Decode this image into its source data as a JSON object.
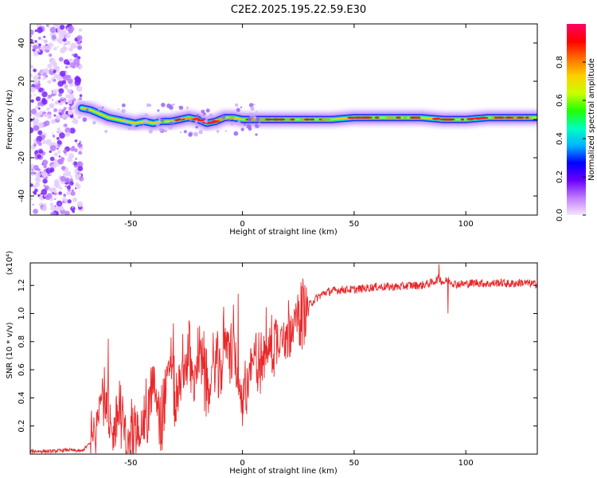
{
  "title": "C2E2.2025.195.22.59.E30",
  "chart_data": [
    {
      "type": "heatmap",
      "title": "C2E2.2025.195.22.59.E30",
      "xlabel": "Height of straight line (km)",
      "ylabel": "Frequency (Hz)",
      "xlim": [
        -95,
        132
      ],
      "ylim": [
        -50,
        50
      ],
      "xticks": [
        -50,
        0,
        50,
        100
      ],
      "xtick_labels": [
        "-50",
        "0",
        "50",
        "100"
      ],
      "yticks": [
        -40,
        -20,
        0,
        20,
        40
      ],
      "ytick_labels": [
        "-40",
        "-20",
        "0",
        "20",
        "40"
      ],
      "colorbar": {
        "label": "Normalized spectral amplitude",
        "range": [
          0,
          1
        ],
        "ticks": [
          0.0,
          0.2,
          0.4,
          0.6,
          0.8
        ],
        "tick_labels": [
          "0.0",
          "0.2",
          "0.4",
          "0.6",
          "0.8"
        ],
        "colors": [
          "#f4e6ff",
          "#c07cff",
          "#6a00ff",
          "#0000ff",
          "#00b4ff",
          "#00ffc0",
          "#20ff00",
          "#c8ff00",
          "#ffd000",
          "#ff7000",
          "#ff0000",
          "#ff0066"
        ]
      },
      "noise_region_x": [
        -95,
        -72
      ],
      "ridge": {
        "x": [
          -72,
          -68,
          -64,
          -60,
          -56,
          -52,
          -48,
          -44,
          -40,
          -36,
          -32,
          -28,
          -24,
          -20,
          -16,
          -12,
          -8,
          -4,
          0,
          10,
          20,
          30,
          40,
          50,
          60,
          70,
          80,
          90,
          100,
          110,
          120,
          132
        ],
        "y": [
          6,
          5,
          3,
          1,
          0,
          -1,
          -2,
          -1,
          -2,
          -1,
          -1,
          0,
          1,
          0,
          -2,
          -1,
          1,
          1,
          0,
          0,
          0,
          0,
          0,
          1,
          1,
          1,
          1,
          0,
          0,
          1,
          1,
          1
        ]
      }
    },
    {
      "type": "line",
      "xlabel": "Height of straight line (km)",
      "ylabel": "SNR (10 * v/v)",
      "multiplier": "(x10⁴)",
      "xlim": [
        -95,
        132
      ],
      "ylim": [
        0,
        1.36
      ],
      "xticks": [
        -50,
        0,
        50,
        100
      ],
      "xtick_labels": [
        "-50",
        "0",
        "50",
        "100"
      ],
      "yticks": [
        0.2,
        0.4,
        0.6,
        0.8,
        1.0,
        1.2
      ],
      "ytick_labels": [
        "0.2",
        "0.4",
        "0.6",
        "0.8",
        "1.0",
        "1.2"
      ],
      "color": "#e8282a",
      "x": [
        -95,
        -85,
        -78,
        -72,
        -68,
        -65,
        -63,
        -61,
        -58,
        -55,
        -52,
        -48,
        -45,
        -42,
        -40,
        -37,
        -34,
        -32,
        -30,
        -27,
        -24,
        -22,
        -19,
        -17,
        -15,
        -12,
        -10,
        -8,
        -6,
        -4,
        -2,
        0,
        2,
        4,
        6,
        8,
        10,
        13,
        16,
        19,
        22,
        25,
        28,
        31,
        34,
        37,
        40,
        45,
        50,
        55,
        60,
        65,
        70,
        75,
        80,
        85,
        88,
        90,
        92,
        95,
        100,
        105,
        110,
        115,
        120,
        125,
        130
      ],
      "y": [
        0.02,
        0.02,
        0.03,
        0.02,
        0.08,
        0.18,
        0.55,
        0.25,
        0.12,
        0.35,
        0.06,
        0.12,
        0.2,
        0.3,
        0.55,
        0.2,
        0.48,
        0.7,
        0.35,
        0.55,
        0.72,
        0.48,
        0.7,
        0.52,
        0.4,
        0.68,
        0.5,
        0.82,
        0.7,
        0.78,
        0.5,
        0.3,
        0.55,
        0.62,
        0.72,
        0.6,
        0.7,
        0.78,
        0.82,
        0.85,
        0.92,
        0.98,
        1.02,
        1.08,
        1.12,
        1.15,
        1.16,
        1.17,
        1.17,
        1.18,
        1.19,
        1.19,
        1.19,
        1.2,
        1.2,
        1.22,
        1.25,
        1.22,
        1.24,
        1.21,
        1.21,
        1.22,
        1.21,
        1.22,
        1.21,
        1.22,
        1.21
      ],
      "spikes": [
        {
          "x": -60,
          "y": 0.82
        },
        {
          "x": -31,
          "y": 0.93
        },
        {
          "x": -24,
          "y": 0.95
        },
        {
          "x": -20,
          "y": 0.9
        },
        {
          "x": -2,
          "y": 1.14
        },
        {
          "x": 0,
          "y": 0.2
        },
        {
          "x": 88,
          "y": 1.35
        },
        {
          "x": 92,
          "y": 1.0
        }
      ]
    }
  ]
}
